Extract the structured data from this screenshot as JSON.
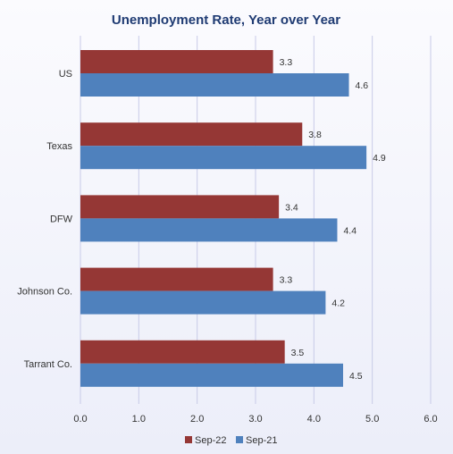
{
  "chart_data": {
    "type": "bar",
    "orientation": "horizontal",
    "title": "Unemployment Rate, Year over Year",
    "categories": [
      "US",
      "Texas",
      "DFW",
      "Johnson Co.",
      "Tarrant Co."
    ],
    "series": [
      {
        "name": "Sep-22",
        "values": [
          3.3,
          3.8,
          3.4,
          3.3,
          3.5
        ],
        "color": "#953735"
      },
      {
        "name": "Sep-21",
        "values": [
          4.6,
          4.9,
          4.4,
          4.2,
          4.5
        ],
        "color": "#4f81bd"
      }
    ],
    "xticks": [
      "0.0",
      "1.0",
      "2.0",
      "3.0",
      "4.0",
      "5.0",
      "6.0"
    ],
    "xlim": [
      0,
      6
    ],
    "grid": "vertical",
    "legend": "bottom"
  }
}
